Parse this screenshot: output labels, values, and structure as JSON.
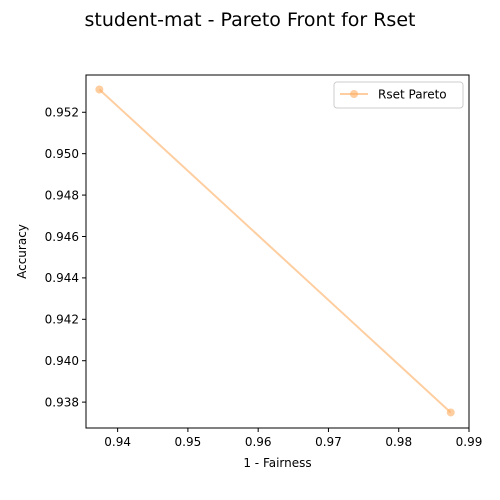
{
  "chart_data": {
    "type": "line",
    "title": "student-mat - Pareto Front for Rset",
    "xlabel": "1 - Fairness",
    "ylabel": "Accuracy",
    "xlim": [
      0.9355,
      0.99
    ],
    "ylim": [
      0.93675,
      0.9538
    ],
    "xticks": [
      0.94,
      0.95,
      0.96,
      0.97,
      0.98,
      0.99
    ],
    "xtick_labels": [
      "0.94",
      "0.95",
      "0.96",
      "0.97",
      "0.98",
      "0.99"
    ],
    "yticks": [
      0.938,
      0.94,
      0.942,
      0.944,
      0.946,
      0.948,
      0.95,
      0.952
    ],
    "ytick_labels": [
      "0.938",
      "0.940",
      "0.942",
      "0.944",
      "0.946",
      "0.948",
      "0.950",
      "0.952"
    ],
    "grid": false,
    "legend_position": "top-right",
    "series": [
      {
        "name": "Rset Pareto",
        "color": "#fdae61",
        "marker": "circle",
        "x": [
          0.9374,
          0.9874
        ],
        "y": [
          0.9531,
          0.9375
        ]
      }
    ]
  }
}
